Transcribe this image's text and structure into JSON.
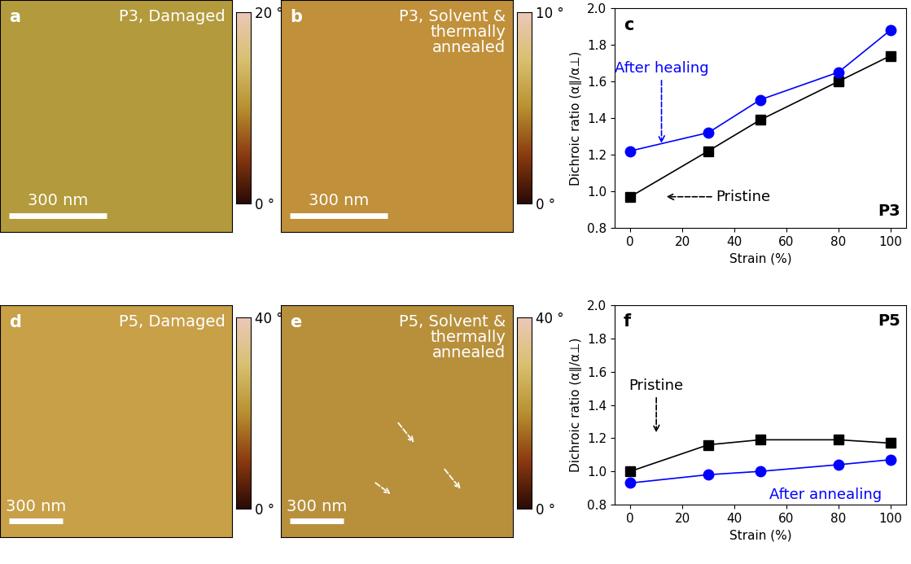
{
  "images": [
    {
      "label": "a",
      "title": "P3, Damaged",
      "scale_bar": "300 nm",
      "color": "#b39a3c",
      "colorbar": {
        "range": [
          0,
          20
        ],
        "ticks": [
          {
            "value": 0,
            "label": "0 °"
          },
          {
            "value": 20,
            "label": "20 °"
          }
        ]
      }
    },
    {
      "label": "b",
      "title": "P3, Solvent &\nthermally\nannealed",
      "scale_bar": "300 nm",
      "color": "#c0903a",
      "colorbar": {
        "range": [
          0,
          10
        ],
        "ticks": [
          {
            "value": 0,
            "label": "0 °"
          },
          {
            "value": 10,
            "label": "10 °"
          }
        ]
      }
    },
    {
      "label": "d",
      "title": "P5, Damaged",
      "scale_bar": "300 nm",
      "color": "#c8a048",
      "colorbar": {
        "range": [
          0,
          40
        ],
        "ticks": [
          {
            "value": 0,
            "label": "0 °"
          },
          {
            "value": 40,
            "label": "40 °"
          }
        ]
      }
    },
    {
      "label": "e",
      "title": "P5, Solvent &\nthermally\nannealed",
      "scale_bar": "300 nm",
      "color": "#b8903c",
      "colorbar": {
        "range": [
          0,
          40
        ],
        "ticks": [
          {
            "value": 0,
            "label": "0 °"
          },
          {
            "value": 40,
            "label": "40 °"
          }
        ]
      }
    }
  ],
  "chart_data": [
    {
      "type": "line",
      "label": "c",
      "title": "P3",
      "x": [
        0,
        30,
        50,
        80,
        100
      ],
      "xlim": [
        -6,
        106
      ],
      "xticks": [
        0,
        20,
        40,
        60,
        80,
        100
      ],
      "ylim": [
        0.8,
        2.0
      ],
      "yticks": [
        0.8,
        {
          "value": 1.0,
          "label": "1.0"
        },
        1.2,
        1.4,
        1.6,
        1.8,
        {
          "value": 2.0,
          "label": "2.0"
        }
      ],
      "xlabel": "Strain (%)",
      "ylabel": "Dichroic ratio (α∥/α⊥)",
      "series": [
        {
          "name": "Pristine",
          "color": "#000000",
          "marker": "square",
          "values": [
            0.97,
            1.22,
            1.39,
            1.6,
            1.74
          ]
        },
        {
          "name": "After healing",
          "color": "#0000ff",
          "marker": "circle",
          "values": [
            1.22,
            1.32,
            1.5,
            1.65,
            1.88
          ]
        }
      ]
    },
    {
      "type": "line",
      "label": "f",
      "title": "P5",
      "x": [
        0,
        30,
        50,
        80,
        100
      ],
      "xlim": [
        -6,
        106
      ],
      "xticks": [
        0,
        20,
        40,
        60,
        80,
        100
      ],
      "ylim": [
        0.8,
        2.0
      ],
      "yticks": [
        0.8,
        {
          "value": 1.0,
          "label": "1.0"
        },
        1.2,
        1.4,
        1.6,
        1.8,
        {
          "value": 2.0,
          "label": "2.0"
        }
      ],
      "xlabel": "Strain (%)",
      "ylabel": "Dichroic ratio (α∥/α⊥)",
      "series": [
        {
          "name": "Pristine",
          "color": "#000000",
          "marker": "square",
          "values": [
            1.0,
            1.16,
            1.19,
            1.19,
            1.17
          ]
        },
        {
          "name": "After annealing",
          "color": "#0000ff",
          "marker": "circle",
          "values": [
            0.93,
            0.98,
            1.0,
            1.04,
            1.07
          ]
        }
      ]
    }
  ]
}
